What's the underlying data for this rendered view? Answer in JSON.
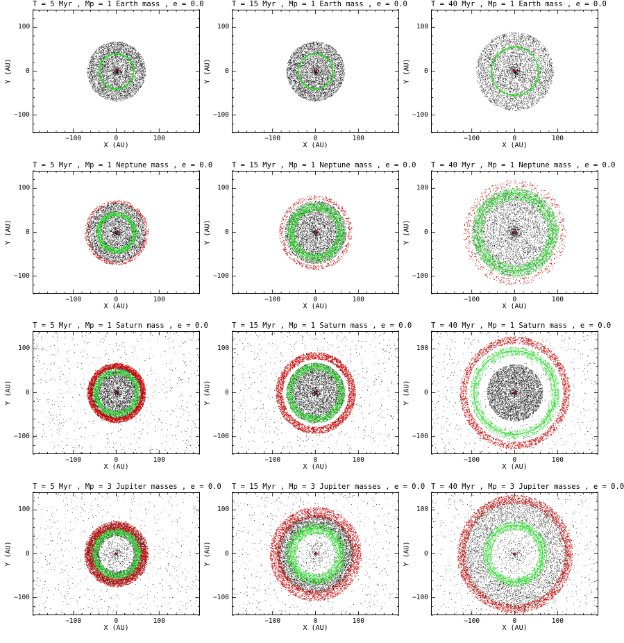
{
  "figure": {
    "columns": 3,
    "rows": 4
  },
  "colors": {
    "particles": "#000000",
    "planet_resonant": "#22dd22",
    "outer_population": "#cc0000",
    "star": "#cc0000",
    "axes": "#000000"
  },
  "chart_data": [
    {
      "type": "scatter",
      "title": "T = 5 Myr , Mp = 1 Earth mass , e = 0.0",
      "time_myr": 5,
      "planet": "1 Earth mass",
      "e": 0.0,
      "xlabel": "X (AU)",
      "ylabel": "Y (AU)",
      "xlim": [
        -195,
        195
      ],
      "ylim": [
        -140,
        140
      ],
      "xticks": [
        -100,
        0,
        100
      ],
      "yticks": [
        -100,
        0,
        100
      ],
      "yticklabels": [
        "−100",
        "0",
        "100"
      ],
      "xticklabels": [
        "−100",
        "0",
        "100"
      ],
      "disk": {
        "inner_radius": 20,
        "outer_radius": 68
      },
      "green_ring_radius": 40,
      "green_ring_width": 2,
      "red_ring": null,
      "scatter_halo": 0
    },
    {
      "type": "scatter",
      "title": "T = 15 Myr , Mp = 1 Earth mass , e = 0.0",
      "time_myr": 15,
      "planet": "1 Earth mass",
      "e": 0.0,
      "xlabel": "X (AU)",
      "ylabel": "Y (AU)",
      "xlim": [
        -195,
        195
      ],
      "ylim": [
        -140,
        140
      ],
      "xticks": [
        -100,
        0,
        100
      ],
      "yticks": [
        -100,
        0,
        100
      ],
      "yticklabels": [
        "−100",
        "0",
        "100"
      ],
      "xticklabels": [
        "−100",
        "0",
        "100"
      ],
      "disk": {
        "inner_radius": 20,
        "outer_radius": 68
      },
      "green_ring_radius": 40,
      "green_ring_width": 2,
      "red_ring": null,
      "scatter_halo": 0
    },
    {
      "type": "scatter",
      "title": "T = 40 Myr , Mp = 1 Earth mass , e = 0.0",
      "time_myr": 40,
      "planet": "1 Earth mass",
      "e": 0.0,
      "xlabel": "X (AU)",
      "ylabel": "Y (AU)",
      "xlim": [
        -195,
        195
      ],
      "ylim": [
        -140,
        140
      ],
      "xticks": [
        -100,
        0,
        100
      ],
      "yticks": [
        -100,
        0,
        100
      ],
      "yticklabels": [
        "−100",
        "0",
        "100"
      ],
      "xticklabels": [
        "−100",
        "0",
        "100"
      ],
      "disk": {
        "inner_radius": 20,
        "outer_radius": 90
      },
      "green_ring_radius": 55,
      "green_ring_width": 2,
      "red_ring": null,
      "scatter_halo": 0
    },
    {
      "type": "scatter",
      "title": "T = 5 Myr , Mp = 1 Neptune mass , e = 0.0",
      "time_myr": 5,
      "planet": "1 Neptune mass",
      "e": 0.0,
      "xlabel": "X (AU)",
      "ylabel": "Y (AU)",
      "xlim": [
        -195,
        195
      ],
      "ylim": [
        -140,
        140
      ],
      "xticks": [
        -100,
        0,
        100
      ],
      "yticks": [
        -100,
        0,
        100
      ],
      "yticklabels": [
        "−100",
        "0",
        "100"
      ],
      "xticklabels": [
        "−100",
        "0",
        "100"
      ],
      "disk": {
        "inner_radius": 20,
        "outer_radius": 68
      },
      "green_ring_radius": 42,
      "green_ring_width": 6,
      "red_ring": {
        "radius": 70,
        "width": 4,
        "density": 0.15
      },
      "scatter_halo": 0
    },
    {
      "type": "scatter",
      "title": "T = 15 Myr , Mp = 1 Neptune mass , e = 0.0",
      "time_myr": 15,
      "planet": "1 Neptune mass",
      "e": 0.0,
      "xlabel": "X (AU)",
      "ylabel": "Y (AU)",
      "xlim": [
        -195,
        195
      ],
      "ylim": [
        -140,
        140
      ],
      "xticks": [
        -100,
        0,
        100
      ],
      "yticks": [
        -100,
        0,
        100
      ],
      "yticklabels": [
        "−100",
        "0",
        "100"
      ],
      "xticklabels": [
        "−100",
        "0",
        "100"
      ],
      "disk": {
        "inner_radius": 20,
        "outer_radius": 72
      },
      "green_ring_radius": 58,
      "green_ring_width": 10,
      "red_ring": {
        "radius": 80,
        "width": 5,
        "density": 0.15
      },
      "scatter_halo": 0
    },
    {
      "type": "scatter",
      "title": "T = 40 Myr , Mp = 1 Neptune mass , e = 0.0",
      "time_myr": 40,
      "planet": "1 Neptune mass",
      "e": 0.0,
      "xlabel": "X (AU)",
      "ylabel": "Y (AU)",
      "xlim": [
        -195,
        195
      ],
      "ylim": [
        -140,
        140
      ],
      "xticks": [
        -100,
        0,
        100
      ],
      "yticks": [
        -100,
        0,
        100
      ],
      "yticklabels": [
        "−100",
        "0",
        "100"
      ],
      "xticklabels": [
        "−100",
        "0",
        "100"
      ],
      "disk": {
        "inner_radius": 20,
        "outer_radius": 100
      },
      "green_ring_radius": 88,
      "green_ring_width": 14,
      "red_ring": {
        "radius": 112,
        "width": 8,
        "density": 0.15
      },
      "scatter_halo": 0
    },
    {
      "type": "scatter",
      "title": "T = 5 Myr , Mp = 1 Saturn mass , e = 0.0",
      "time_myr": 5,
      "planet": "1 Saturn mass",
      "e": 0.0,
      "xlabel": "X (AU)",
      "ylabel": "Y (AU)",
      "xlim": [
        -195,
        195
      ],
      "ylim": [
        -140,
        140
      ],
      "xticks": [
        -100,
        0,
        100
      ],
      "yticks": [
        -100,
        0,
        100
      ],
      "yticklabels": [
        "−100",
        "0",
        "100"
      ],
      "xticklabels": [
        "−100",
        "0",
        "100"
      ],
      "disk": {
        "inner_radius": 20,
        "outer_radius": 62
      },
      "green_ring_radius": 48,
      "green_ring_width": 7,
      "red_ring": {
        "radius": 62,
        "width": 6,
        "density": 0.9
      },
      "scatter_halo": 1
    },
    {
      "type": "scatter",
      "title": "T = 15 Myr , Mp = 1 Saturn mass , e = 0.0",
      "time_myr": 15,
      "planet": "1 Saturn mass",
      "e": 0.0,
      "xlabel": "X (AU)",
      "ylabel": "Y (AU)",
      "xlim": [
        -195,
        195
      ],
      "ylim": [
        -140,
        140
      ],
      "xticks": [
        -100,
        0,
        100
      ],
      "yticks": [
        -100,
        0,
        100
      ],
      "yticklabels": [
        "−100",
        "0",
        "100"
      ],
      "xticklabels": [
        "−100",
        "0",
        "100"
      ],
      "disk": {
        "inner_radius": 20,
        "outer_radius": 68
      },
      "green_ring_radius": 60,
      "green_ring_width": 9,
      "red_ring": {
        "radius": 85,
        "width": 8,
        "density": 0.9
      },
      "scatter_halo": 1
    },
    {
      "type": "scatter",
      "title": "T = 40 Myr , Mp = 1 Saturn mass , e = 0.0",
      "time_myr": 40,
      "planet": "1 Saturn mass",
      "e": 0.0,
      "xlabel": "X (AU)",
      "ylabel": "Y (AU)",
      "xlim": [
        -195,
        195
      ],
      "ylim": [
        -140,
        140
      ],
      "xticks": [
        -100,
        0,
        100
      ],
      "yticks": [
        -100,
        0,
        100
      ],
      "yticklabels": [
        "−100",
        "0",
        "100"
      ],
      "xticklabels": [
        "−100",
        "0",
        "100"
      ],
      "disk": {
        "inner_radius": 20,
        "outer_radius": 65
      },
      "green_ring_radius": 95,
      "green_ring_width": 10,
      "red_ring": {
        "radius": 120,
        "width": 8,
        "density": 0.7
      },
      "scatter_halo": 1
    },
    {
      "type": "scatter",
      "title": "T = 5 Myr , Mp = 3 Jupiter masses , e = 0.0",
      "time_myr": 5,
      "planet": "3 Jupiter masses",
      "e": 0.0,
      "xlabel": "X (AU)",
      "ylabel": "Y (AU)",
      "xlim": [
        -195,
        195
      ],
      "ylim": [
        -140,
        140
      ],
      "xticks": [
        -100,
        0,
        100
      ],
      "yticks": [
        -100,
        0,
        100
      ],
      "yticklabels": [
        "−100",
        "0",
        "100"
      ],
      "xticklabels": [
        "−100",
        "0",
        "100"
      ],
      "disk": {
        "inner_radius": 40,
        "outer_radius": 70
      },
      "green_ring_radius": 50,
      "green_ring_width": 8,
      "red_ring": {
        "radius": 65,
        "width": 10,
        "density": 0.9
      },
      "scatter_halo": 1
    },
    {
      "type": "scatter",
      "title": "T = 15 Myr , Mp = 3 Jupiter masses , e = 0.0",
      "time_myr": 15,
      "planet": "3 Jupiter masses",
      "e": 0.0,
      "xlabel": "X (AU)",
      "ylabel": "Y (AU)",
      "xlim": [
        -195,
        195
      ],
      "ylim": [
        -140,
        140
      ],
      "xticks": [
        -100,
        0,
        100
      ],
      "yticks": [
        -100,
        0,
        100
      ],
      "yticklabels": [
        "−100",
        "0",
        "100"
      ],
      "xticklabels": [
        "−100",
        "0",
        "100"
      ],
      "disk": {
        "inner_radius": 60,
        "outer_radius": 90
      },
      "green_ring_radius": 58,
      "green_ring_width": 12,
      "red_ring": {
        "radius": 95,
        "width": 12,
        "density": 0.9
      },
      "scatter_halo": 1
    },
    {
      "type": "scatter",
      "title": "T = 40 Myr , Mp = 3 Jupiter masses , e = 0.0",
      "time_myr": 40,
      "planet": "3 Jupiter masses",
      "e": 0.0,
      "xlabel": "X (AU)",
      "ylabel": "Y (AU)",
      "xlim": [
        -195,
        195
      ],
      "ylim": [
        -140,
        140
      ],
      "xticks": [
        -100,
        0,
        100
      ],
      "yticks": [
        -100,
        0,
        100
      ],
      "yticklabels": [
        "−100",
        "0",
        "100"
      ],
      "xticklabels": [
        "−100",
        "0",
        "100"
      ],
      "disk": {
        "inner_radius": 70,
        "outer_radius": 125
      },
      "green_ring_radius": 65,
      "green_ring_width": 10,
      "red_ring": {
        "radius": 125,
        "width": 10,
        "density": 0.9
      },
      "scatter_halo": 1
    }
  ]
}
